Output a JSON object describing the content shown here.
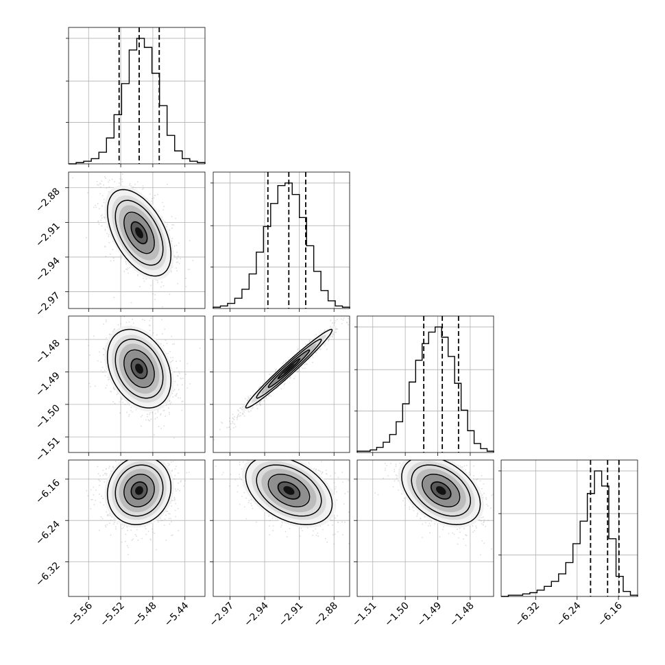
{
  "chart_data": {
    "type": "corner",
    "grid": true,
    "params": [
      {
        "ticks": [
          -5.56,
          -5.52,
          -5.48,
          -5.44
        ],
        "tick_labels": [
          "−5.56",
          "−5.52",
          "−5.48",
          "−5.44"
        ],
        "range": [
          -5.585,
          -5.415
        ],
        "quantiles": [
          -5.522,
          -5.497,
          -5.472
        ],
        "mean": -5.497,
        "sd": 0.018
      },
      {
        "ticks": [
          -2.97,
          -2.94,
          -2.91,
          -2.88
        ],
        "tick_labels": [
          "−2.97",
          "−2.94",
          "−2.91",
          "−2.88"
        ],
        "range": [
          -2.9845,
          -2.8665
        ],
        "quantiles": [
          -2.9372,
          -2.9191,
          -2.9045
        ],
        "mean": -2.919,
        "sd": 0.017
      },
      {
        "ticks": [
          -1.51,
          -1.5,
          -1.49,
          -1.48
        ],
        "tick_labels": [
          "−1.51",
          "−1.50",
          "−1.49",
          "−1.48"
        ],
        "range": [
          -1.5148,
          -1.4728
        ],
        "quantiles": [
          -1.4943,
          -1.4886,
          -1.4836
        ],
        "mean": -1.489,
        "sd": 0.0055
      },
      {
        "ticks": [
          -6.32,
          -6.24,
          -6.16
        ],
        "tick_labels": [
          "−6.32",
          "−6.24",
          "−6.16"
        ],
        "range": [
          -6.387,
          -6.123
        ],
        "quantiles": [
          -6.214,
          -6.181,
          -6.159
        ],
        "mean": -6.182,
        "sd": 0.03
      }
    ],
    "histograms": [
      [
        0,
        1,
        2,
        4,
        9,
        20,
        38,
        62,
        88,
        97,
        90,
        70,
        45,
        22,
        10,
        4,
        2,
        1
      ],
      [
        1,
        2,
        4,
        8,
        15,
        27,
        44,
        64,
        82,
        96,
        98,
        89,
        71,
        49,
        29,
        14,
        6,
        2,
        1
      ],
      [
        1,
        1,
        2,
        4,
        8,
        14,
        24,
        38,
        55,
        72,
        85,
        94,
        98,
        90,
        75,
        54,
        33,
        17,
        7,
        3,
        1
      ],
      [
        0,
        1,
        1,
        2,
        3,
        5,
        8,
        12,
        18,
        27,
        42,
        60,
        82,
        100,
        88,
        46,
        16,
        4,
        1
      ]
    ],
    "correlations": [
      {
        "pair": [
          1,
          0
        ],
        "rho": -0.5
      },
      {
        "pair": [
          2,
          0
        ],
        "rho": -0.3
      },
      {
        "pair": [
          2,
          1
        ],
        "rho": 0.98
      },
      {
        "pair": [
          3,
          0
        ],
        "rho": 0.1
      },
      {
        "pair": [
          3,
          1
        ],
        "rho": -0.4
      },
      {
        "pair": [
          3,
          2
        ],
        "rho": -0.4
      }
    ]
  }
}
